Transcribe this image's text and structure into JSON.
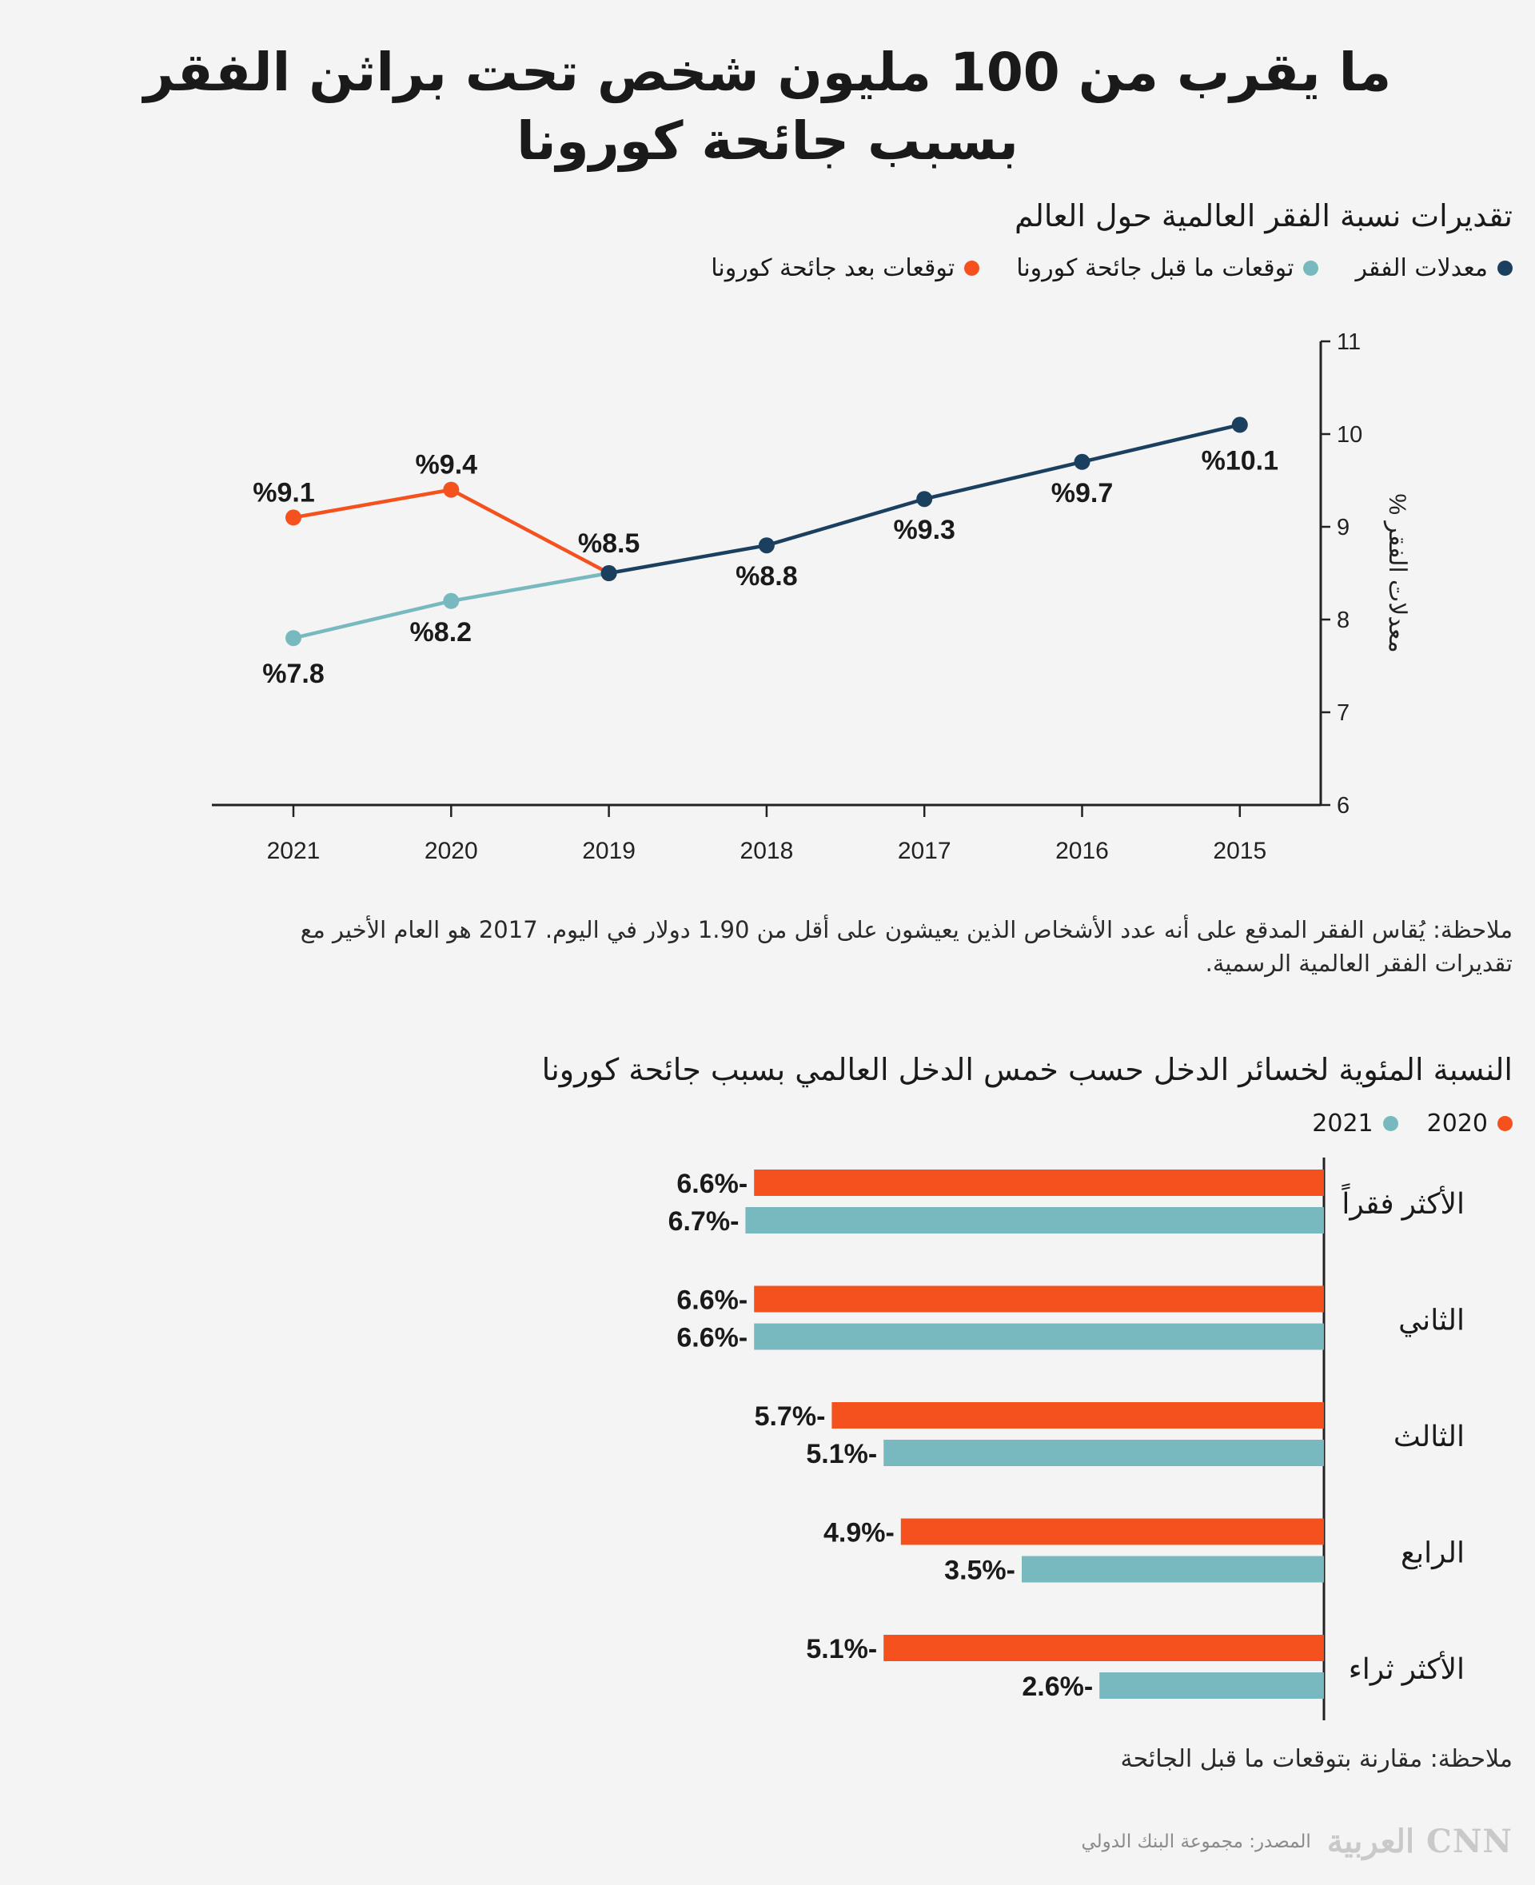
{
  "title_line1": "ما يقرب من 100 مليون شخص تحت براثن الفقر",
  "title_line2": "بسبب جائحة كورونا",
  "colors": {
    "navy": "#1b3f5e",
    "teal": "#78b9c0",
    "orange": "#f4511e",
    "axis": "#222222"
  },
  "line_section": {
    "title": "تقديرات نسبة الفقر العالمية حول العالم",
    "legend": [
      {
        "label": "معدلات الفقر",
        "color": "#1b3f5e"
      },
      {
        "label": "توقعات ما قبل جائحة كورونا",
        "color": "#78b9c0"
      },
      {
        "label": "توقعات بعد جائحة كورونا",
        "color": "#f4511e"
      }
    ],
    "note_line1": "ملاحظة: يُقاس الفقر المدقع على أنه عدد الأشخاص الذين يعيشون على أقل من 1.90 دولار في اليوم. 2017 هو العام الأخير مع",
    "note_line2": "تقديرات الفقر العالمية الرسمية."
  },
  "bar_section": {
    "title": "النسبة المئوية لخسائر الدخل حسب خمس الدخل العالمي بسبب جائحة كورونا",
    "legend": [
      {
        "label": "2020",
        "color": "#f4511e"
      },
      {
        "label": "2021",
        "color": "#78b9c0"
      }
    ],
    "note": "ملاحظة: مقارنة بتوقعات ما قبل الجائحة"
  },
  "source": "المصدر: مجموعة البنك الدولي",
  "logo_text": "CNN العربية",
  "chart_data": [
    {
      "type": "line",
      "title": "تقديرات نسبة الفقر العالمية حول العالم",
      "ylabel": "معدلات الفقر %",
      "ylim": [
        6,
        11
      ],
      "yticks": [
        6,
        7,
        8,
        9,
        10,
        11
      ],
      "x": [
        "2021",
        "2020",
        "2019",
        "2018",
        "2017",
        "2016",
        "2015"
      ],
      "series": [
        {
          "name": "معدلات الفقر",
          "x": [
            "2019",
            "2018",
            "2017",
            "2016",
            "2015"
          ],
          "values": [
            8.5,
            8.8,
            9.3,
            9.7,
            10.1
          ],
          "labels": [
            "%8.5",
            "%8.8",
            "%9.3",
            "%9.7",
            "%10.1"
          ]
        },
        {
          "name": "توقعات ما قبل جائحة كورونا",
          "x": [
            "2021",
            "2020",
            "2019"
          ],
          "values": [
            7.8,
            8.2,
            8.5
          ],
          "labels": [
            "%7.8",
            "%8.2",
            null
          ]
        },
        {
          "name": "توقعات بعد جائحة كورونا",
          "x": [
            "2021",
            "2020",
            "2019"
          ],
          "values": [
            9.1,
            9.4,
            8.5
          ],
          "labels": [
            "%9.1",
            "%9.4",
            null
          ]
        }
      ],
      "grid": false,
      "legend_position": "top-right"
    },
    {
      "type": "bar",
      "title": "النسبة المئوية لخسائر الدخل حسب خمس الدخل العالمي بسبب جائحة كورونا",
      "orientation": "horizontal",
      "categories": [
        "الأكثر فقراً",
        "الثاني",
        "الثالث",
        "الرابع",
        "الأكثر ثراء"
      ],
      "series": [
        {
          "name": "2020",
          "values": [
            -6.6,
            -6.6,
            -5.7,
            -4.9,
            -5.1
          ],
          "labels": [
            "-6.6%",
            "-6.6%",
            "-5.7%",
            "-4.9%",
            "-5.1%"
          ]
        },
        {
          "name": "2021",
          "values": [
            -6.7,
            -6.6,
            -5.1,
            -3.5,
            -2.6
          ],
          "labels": [
            "-6.7%",
            "-6.6%",
            "-5.1%",
            "-3.5%",
            "-2.6%"
          ]
        }
      ],
      "legend_position": "top-right"
    }
  ]
}
